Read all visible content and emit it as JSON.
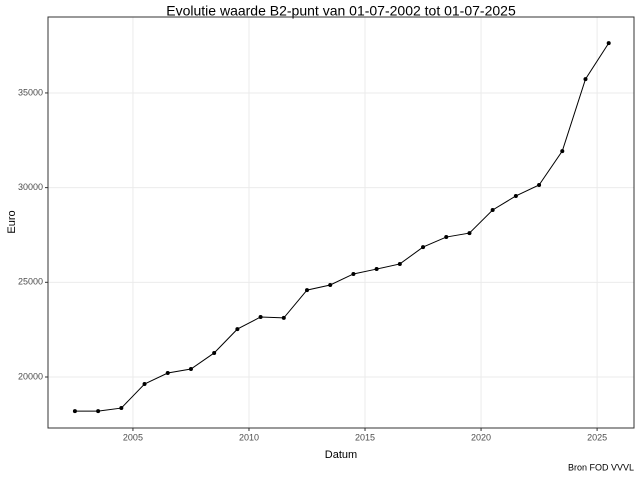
{
  "chart_data": {
    "type": "line",
    "title": "Evolutie waarde B2-punt van 01-07-2002 tot 01-07-2025",
    "x_label": "Datum",
    "y_label": "Euro",
    "caption": "Bron FOD VVVL",
    "x": [
      2002.5,
      2003.5,
      2004.5,
      2005.5,
      2006.5,
      2007.5,
      2008.5,
      2009.5,
      2010.5,
      2011.5,
      2012.5,
      2013.5,
      2014.5,
      2015.5,
      2016.5,
      2017.5,
      2018.5,
      2019.5,
      2020.5,
      2021.5,
      2022.5,
      2023.5,
      2024.5,
      2025.5
    ],
    "values": [
      18200,
      18200,
      18360,
      19630,
      20210,
      20420,
      21270,
      22530,
      23170,
      23120,
      24590,
      24860,
      25440,
      25700,
      25970,
      26860,
      27390,
      27600,
      28820,
      29560,
      30140,
      31930,
      35730,
      37630
    ],
    "color": "#000000",
    "xlim": [
      2001.34,
      2026.59
    ],
    "xticks": [
      2005,
      2010,
      2015,
      2020,
      2025
    ],
    "ylim": [
      17307,
      39010
    ],
    "yticks": [
      20000,
      25000,
      30000,
      35000
    ],
    "grid": true
  }
}
